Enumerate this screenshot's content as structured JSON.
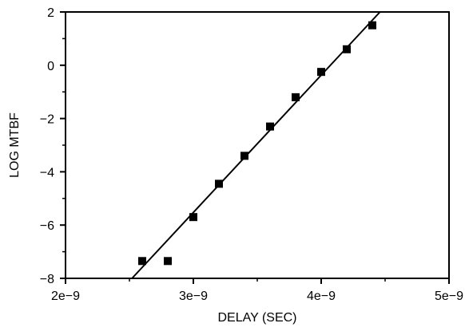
{
  "chart_data": {
    "type": "scatter",
    "title": "",
    "xlabel": "DELAY (SEC)",
    "ylabel": "LOG MTBF",
    "xlim": [
      2e-09,
      5e-09
    ],
    "ylim": [
      -8,
      2
    ],
    "x_ticks": [
      {
        "value": 2e-09,
        "label": "2e−9"
      },
      {
        "value": 3e-09,
        "label": "3e−9"
      },
      {
        "value": 4e-09,
        "label": "4e−9"
      },
      {
        "value": 5e-09,
        "label": "5e−9"
      }
    ],
    "x_minor_ticks": [
      2.5e-09,
      3.5e-09,
      4.5e-09
    ],
    "y_ticks": [
      {
        "value": -8,
        "label": "−8"
      },
      {
        "value": -6,
        "label": "−6"
      },
      {
        "value": -4,
        "label": "−4"
      },
      {
        "value": -2,
        "label": "−2"
      },
      {
        "value": 0,
        "label": "0"
      },
      {
        "value": 2,
        "label": "2"
      }
    ],
    "y_minor_ticks": [
      -7,
      -5,
      -3,
      -1,
      1
    ],
    "grid": false,
    "legend": "none",
    "colors": {
      "marker": "#000000",
      "line": "#000000",
      "axis": "#000000"
    },
    "series": [
      {
        "kind": "points",
        "marker": "square",
        "points": [
          {
            "x": 2.6e-09,
            "y": -7.35
          },
          {
            "x": 2.8e-09,
            "y": -7.35
          },
          {
            "x": 3e-09,
            "y": -5.7
          },
          {
            "x": 3.2e-09,
            "y": -4.45
          },
          {
            "x": 3.4e-09,
            "y": -3.4
          },
          {
            "x": 3.6e-09,
            "y": -2.3
          },
          {
            "x": 3.8e-09,
            "y": -1.2
          },
          {
            "x": 4e-09,
            "y": -0.25
          },
          {
            "x": 4.2e-09,
            "y": 0.6
          },
          {
            "x": 4.4e-09,
            "y": 1.5
          }
        ]
      },
      {
        "kind": "fit-line",
        "points": [
          {
            "x": 2.52e-09,
            "y": -8
          },
          {
            "x": 4.46e-09,
            "y": 2
          }
        ]
      }
    ]
  }
}
